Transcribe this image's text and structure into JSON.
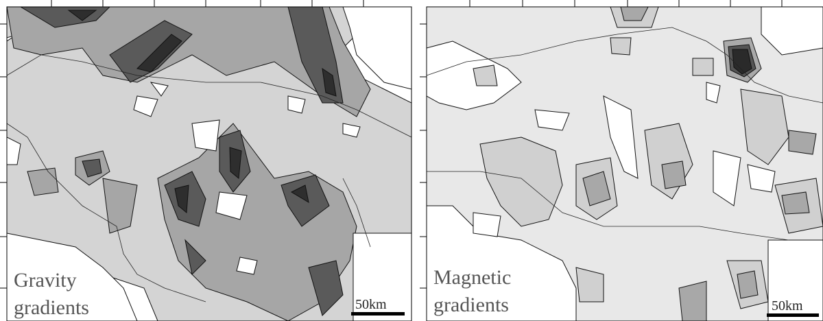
{
  "panels": [
    {
      "label": [
        "Gravity",
        "gradients"
      ],
      "scale_bar": "50km"
    },
    {
      "label": [
        "Magnetic",
        "gradients"
      ],
      "scale_bar": "50km"
    }
  ]
}
